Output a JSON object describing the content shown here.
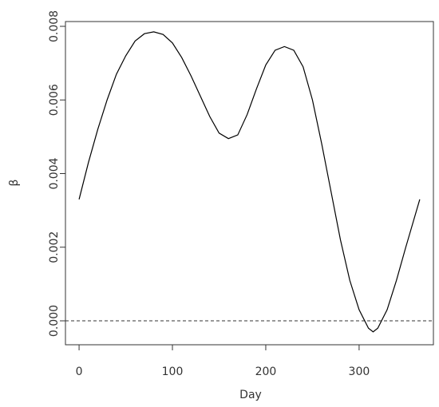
{
  "chart_data": {
    "type": "line",
    "x_label": "Day",
    "y_label": "β",
    "x": [
      0,
      10,
      20,
      30,
      40,
      50,
      60,
      70,
      80,
      90,
      100,
      110,
      120,
      130,
      140,
      150,
      160,
      170,
      180,
      190,
      200,
      210,
      220,
      230,
      240,
      250,
      260,
      270,
      280,
      290,
      300,
      310,
      315,
      320,
      330,
      340,
      350,
      365
    ],
    "series": [
      {
        "color": "#000000",
        "values": [
          0.0033,
          0.0043,
          0.0052,
          0.006,
          0.0067,
          0.0072,
          0.0076,
          0.0078,
          0.00785,
          0.00778,
          0.00755,
          0.00715,
          0.00665,
          0.0061,
          0.00555,
          0.0051,
          0.00495,
          0.00505,
          0.0056,
          0.0063,
          0.00695,
          0.00735,
          0.00745,
          0.00735,
          0.0069,
          0.006,
          0.0048,
          0.0035,
          0.0022,
          0.0011,
          0.0003,
          -0.0002,
          -0.0003,
          -0.0002,
          0.0003,
          0.0011,
          0.002,
          0.0033
        ]
      }
    ],
    "hline": 0,
    "xlim": [
      -14.6,
      379.6
    ],
    "xticks": [
      0,
      100,
      200,
      300
    ],
    "ylim": [
      -0.00065,
      0.00813
    ],
    "yticks": [
      {
        "value": 0,
        "label": "0.000"
      },
      {
        "value": 0.002,
        "label": "0.002"
      },
      {
        "value": 0.004,
        "label": "0.004"
      },
      {
        "value": 0.006,
        "label": "0.006"
      },
      {
        "value": 0.008,
        "label": "0.008"
      }
    ]
  }
}
